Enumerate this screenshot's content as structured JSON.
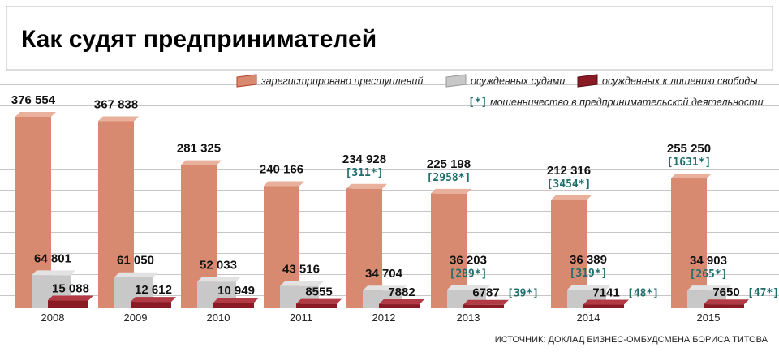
{
  "title": "Как судят предпринимателей",
  "legend": {
    "registered": "зарегистрировано преступлений",
    "convicted": "осужденных судами",
    "imprisoned": "осужденных к лишению свободы",
    "fraud_note": "мошенничество в предпринимательской деятельности",
    "fraud_marker": "[*]"
  },
  "source": "ИСТОЧНИК: ДОКЛАД БИЗНЕС-ОМБУДСМЕНА БОРИСА ТИТОВА",
  "colors": {
    "registered": "#d88a70",
    "convicted": "#c8c8c8",
    "imprisoned": "#8a1a24",
    "note": "#1f6e6b"
  },
  "chart_data": {
    "type": "bar",
    "title": "Как судят предпринимателей",
    "categories": [
      "2008",
      "2009",
      "2010",
      "2011",
      "2012",
      "2013",
      "2014",
      "2015"
    ],
    "series": [
      {
        "name": "зарегистрировано преступлений",
        "values": [
          376554,
          367838,
          281325,
          240166,
          234928,
          225198,
          212316,
          255250
        ],
        "labels": [
          "376 554",
          "367 838",
          "281 325",
          "240 166",
          "234 928",
          "225 198",
          "212 316",
          "255 250"
        ],
        "notes": [
          null,
          null,
          null,
          null,
          "[311*]",
          "[2958*]",
          "[3454*]",
          "[1631*]"
        ]
      },
      {
        "name": "осужденных судами",
        "values": [
          64801,
          61050,
          52033,
          43516,
          34704,
          36203,
          36389,
          34903
        ],
        "labels": [
          "64 801",
          "61 050",
          "52 033",
          "43 516",
          "34 704",
          "36 203",
          "36 389",
          "34 903"
        ],
        "notes": [
          null,
          null,
          null,
          null,
          null,
          "[289*]",
          "[319*]",
          "[265*]"
        ]
      },
      {
        "name": "осужденных к лишению свободы",
        "values": [
          15088,
          12612,
          10949,
          8555,
          7882,
          6787,
          7141,
          7650
        ],
        "labels": [
          "15 088",
          "12 612",
          "10 949",
          "8555",
          "7882",
          "6787",
          "7141",
          "7650"
        ],
        "notes": [
          null,
          null,
          null,
          null,
          null,
          "[39*]",
          "[48*]",
          "[47*]"
        ]
      }
    ],
    "ylim": [
      0,
      400000
    ],
    "grid": true
  }
}
